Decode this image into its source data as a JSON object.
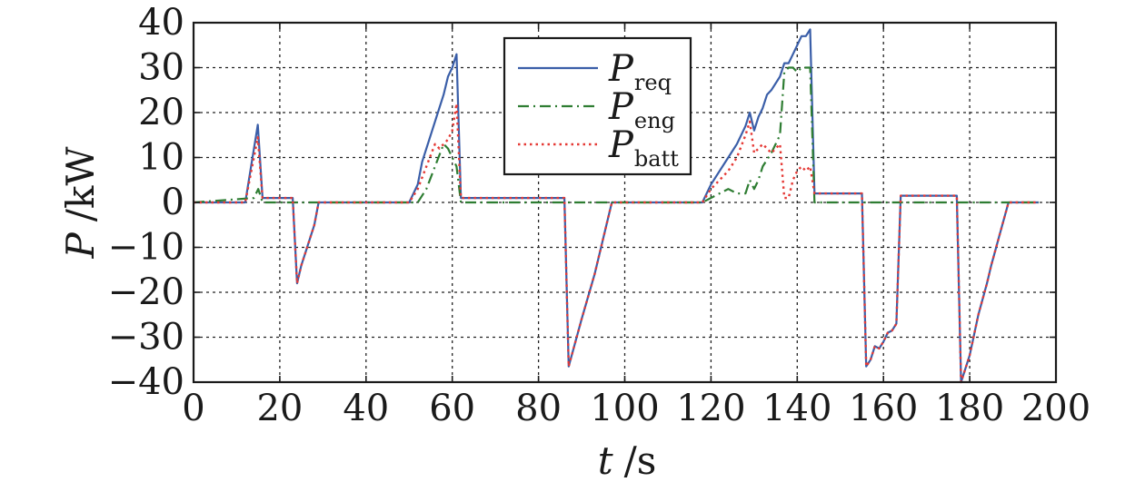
{
  "chart_data": {
    "type": "line",
    "xlabel": {
      "var": "t",
      "unit": "/s"
    },
    "ylabel": {
      "var": "P",
      "unit": "/kW"
    },
    "xlim": [
      0,
      200
    ],
    "ylim": [
      -40,
      40
    ],
    "xticks": [
      "0",
      "20",
      "40",
      "60",
      "80",
      "100",
      "120",
      "140",
      "160",
      "180",
      "200"
    ],
    "yticks": [
      "40",
      "30",
      "20",
      "10",
      "0",
      "−10",
      "−20",
      "−30",
      "−40"
    ],
    "grid": true,
    "legend_position": "top-center",
    "series": [
      {
        "id": "req",
        "name": "P",
        "sub": "req",
        "color": "#3a5ea8",
        "style": "solid",
        "points": [
          [
            0,
            0
          ],
          [
            12,
            0
          ],
          [
            14.9,
            17.3
          ],
          [
            16,
            1
          ],
          [
            23,
            1
          ],
          [
            24,
            -18
          ],
          [
            25,
            -14
          ],
          [
            28,
            -5
          ],
          [
            29,
            0
          ],
          [
            50,
            0
          ],
          [
            52,
            4
          ],
          [
            53,
            9
          ],
          [
            56,
            18
          ],
          [
            58,
            24
          ],
          [
            59,
            28
          ],
          [
            60,
            30
          ],
          [
            61,
            33
          ],
          [
            62,
            1
          ],
          [
            86,
            1
          ],
          [
            87,
            -36.5
          ],
          [
            90,
            -26
          ],
          [
            93,
            -16
          ],
          [
            95,
            -8
          ],
          [
            97,
            0
          ],
          [
            118,
            0
          ],
          [
            120,
            4
          ],
          [
            122,
            7
          ],
          [
            124,
            10
          ],
          [
            126,
            13
          ],
          [
            128,
            17
          ],
          [
            129,
            20
          ],
          [
            130,
            16
          ],
          [
            131,
            19
          ],
          [
            132,
            21
          ],
          [
            133,
            24
          ],
          [
            134,
            25
          ],
          [
            136,
            28
          ],
          [
            137,
            31
          ],
          [
            138,
            31
          ],
          [
            139,
            33
          ],
          [
            140,
            35
          ],
          [
            141,
            37
          ],
          [
            142,
            37
          ],
          [
            143,
            38.5
          ],
          [
            144,
            2
          ],
          [
            155,
            2
          ],
          [
            156,
            -36.5
          ],
          [
            157,
            -35
          ],
          [
            158,
            -32
          ],
          [
            159,
            -32.5
          ],
          [
            160,
            -31
          ],
          [
            161,
            -29
          ],
          [
            162,
            -28.5
          ],
          [
            163,
            -27
          ],
          [
            164,
            1.5
          ],
          [
            177,
            1.5
          ],
          [
            178,
            -40
          ],
          [
            180,
            -34
          ],
          [
            182,
            -25
          ],
          [
            184,
            -18
          ],
          [
            185,
            -14
          ],
          [
            187,
            -7
          ],
          [
            189,
            0
          ],
          [
            196,
            0
          ]
        ]
      },
      {
        "id": "eng",
        "name": "P",
        "sub": "eng",
        "color": "#2e7d32",
        "style": "dashdot",
        "points": [
          [
            0,
            0
          ],
          [
            14,
            1
          ],
          [
            15,
            3
          ],
          [
            16,
            0
          ],
          [
            52,
            0
          ],
          [
            54,
            3
          ],
          [
            56,
            8
          ],
          [
            58,
            13
          ],
          [
            59,
            12
          ],
          [
            60,
            10
          ],
          [
            61,
            8
          ],
          [
            62,
            0
          ],
          [
            118,
            0
          ],
          [
            122,
            2
          ],
          [
            124,
            3
          ],
          [
            126,
            2
          ],
          [
            128,
            2
          ],
          [
            129,
            5
          ],
          [
            130,
            3
          ],
          [
            131,
            5
          ],
          [
            132,
            8
          ],
          [
            134,
            11
          ],
          [
            136,
            15
          ],
          [
            137,
            29
          ],
          [
            138,
            30
          ],
          [
            139,
            30
          ],
          [
            140,
            29
          ],
          [
            141,
            30
          ],
          [
            142,
            30
          ],
          [
            143,
            30
          ],
          [
            144,
            0
          ],
          [
            196,
            0
          ]
        ]
      },
      {
        "id": "batt",
        "name": "P",
        "sub": "batt",
        "color": "#e53935",
        "style": "dotted",
        "points": [
          [
            0,
            0
          ],
          [
            12,
            0
          ],
          [
            14.9,
            14.5
          ],
          [
            16,
            1
          ],
          [
            23,
            1
          ],
          [
            24,
            -18
          ],
          [
            25,
            -14
          ],
          [
            28,
            -5
          ],
          [
            29,
            0
          ],
          [
            50,
            0
          ],
          [
            52,
            3
          ],
          [
            54,
            8
          ],
          [
            56,
            13
          ],
          [
            57,
            12
          ],
          [
            59,
            14
          ],
          [
            60,
            16
          ],
          [
            61,
            22
          ],
          [
            62,
            1
          ],
          [
            86,
            1
          ],
          [
            87,
            -36.5
          ],
          [
            90,
            -26
          ],
          [
            93,
            -16
          ],
          [
            95,
            -8
          ],
          [
            97,
            0
          ],
          [
            118,
            0
          ],
          [
            120,
            3
          ],
          [
            122,
            5
          ],
          [
            124,
            7
          ],
          [
            126,
            10
          ],
          [
            128,
            15
          ],
          [
            129,
            18
          ],
          [
            130,
            11
          ],
          [
            131,
            12
          ],
          [
            132,
            13
          ],
          [
            134,
            11
          ],
          [
            136,
            13
          ],
          [
            137,
            1
          ],
          [
            138,
            1
          ],
          [
            139,
            5
          ],
          [
            140,
            7
          ],
          [
            141,
            8
          ],
          [
            142,
            7
          ],
          [
            143,
            8
          ],
          [
            144,
            2
          ],
          [
            155,
            2
          ],
          [
            156,
            -36.5
          ],
          [
            157,
            -35
          ],
          [
            158,
            -32
          ],
          [
            159,
            -32.5
          ],
          [
            160,
            -31
          ],
          [
            161,
            -29
          ],
          [
            162,
            -28.5
          ],
          [
            163,
            -27
          ],
          [
            164,
            1.5
          ],
          [
            177,
            1.5
          ],
          [
            178,
            -40
          ],
          [
            180,
            -34
          ],
          [
            182,
            -25
          ],
          [
            184,
            -18
          ],
          [
            185,
            -14
          ],
          [
            187,
            -7
          ],
          [
            189,
            0
          ],
          [
            196,
            0
          ]
        ]
      }
    ]
  }
}
